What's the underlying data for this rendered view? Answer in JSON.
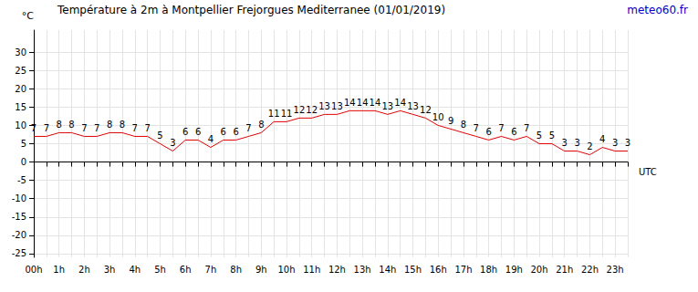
{
  "chart_data": {
    "type": "line",
    "title": "Température à 2m à Montpellier Frejorgues Mediterranee (01/01/2019)",
    "annotations": [
      "meteo60.fr"
    ],
    "x_label": "UTC",
    "y_label": "°C",
    "categories": [
      "00h",
      null,
      "1h",
      null,
      "2h",
      null,
      "3h",
      null,
      "4h",
      null,
      "5h",
      null,
      "6h",
      null,
      "7h",
      null,
      "8h",
      null,
      "9h",
      null,
      "10h",
      null,
      "11h",
      null,
      "12h",
      null,
      "13h",
      null,
      "14h",
      null,
      "15h",
      null,
      "16h",
      null,
      "17h",
      null,
      "18h",
      null,
      "19h",
      null,
      "20h",
      null,
      "21h",
      null,
      "22h",
      null,
      "23h",
      null
    ],
    "values": [
      7,
      7,
      8,
      8,
      7,
      7,
      8,
      8,
      7,
      7,
      5,
      3,
      6,
      6,
      4,
      6,
      6,
      7,
      8,
      11,
      11,
      12,
      12,
      13,
      13,
      14,
      14,
      14,
      13,
      14,
      13,
      12,
      10,
      9,
      8,
      7,
      6,
      7,
      6,
      7,
      5,
      5,
      3,
      3,
      2,
      4,
      3,
      3
    ],
    "color": "#e00000",
    "ylim": [
      -26,
      36
    ],
    "yticks": [
      -25,
      -20,
      -15,
      -10,
      -5,
      0,
      5,
      10,
      15,
      20,
      25,
      30
    ],
    "grid": true,
    "data_labels": true
  }
}
